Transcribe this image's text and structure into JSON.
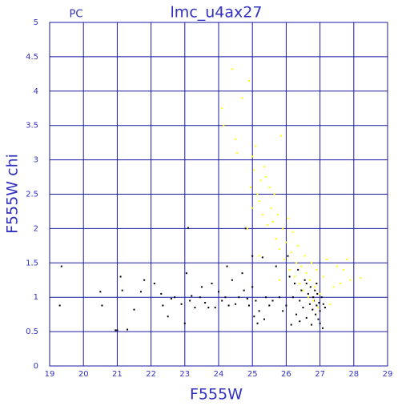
{
  "chart_data": {
    "type": "scatter",
    "title": "lmc_u4ax27",
    "subtitle": "PC",
    "x_label": "F555W",
    "y_label": "F555W chi",
    "xlim": [
      19,
      29
    ],
    "xticks": [
      19,
      20,
      21,
      22,
      23,
      24,
      25,
      26,
      27,
      28,
      29
    ],
    "ylim": [
      0,
      5
    ],
    "yticks": [
      0,
      0.5,
      1,
      1.5,
      2,
      2.5,
      3,
      3.5,
      4,
      4.5,
      5
    ],
    "grid": true,
    "series": [
      {
        "color": "#000000",
        "x": [
          19.3,
          19.35,
          20.5,
          20.55,
          20.95,
          21.0,
          21.1,
          21.15,
          21.3,
          21.5,
          21.7,
          21.8,
          22.1,
          22.3,
          22.35,
          22.5,
          22.6,
          22.7,
          22.9,
          23.0,
          23.05,
          23.1,
          23.15,
          23.2,
          23.3,
          23.45,
          23.5,
          23.6,
          23.7,
          23.8,
          23.9,
          24.0,
          24.1,
          24.2,
          24.25,
          24.3,
          24.4,
          24.5,
          24.6,
          24.7,
          24.75,
          24.8,
          24.85,
          24.9,
          25.0,
          25.0,
          25.05,
          25.1,
          25.15,
          25.2,
          25.3,
          25.35,
          25.4,
          25.5,
          25.6,
          25.7,
          25.8,
          25.9,
          26.0,
          26.05,
          26.1,
          26.15,
          26.2,
          26.25,
          26.3,
          26.35,
          26.4,
          26.45,
          26.5,
          26.55,
          26.6,
          26.65,
          26.7,
          26.72,
          26.75,
          26.78,
          26.8,
          26.82,
          26.85,
          26.87,
          26.9,
          26.92,
          26.95,
          26.97,
          27.0,
          27.05,
          27.08,
          27.1,
          27.15,
          26.6,
          26.4,
          26.9,
          27.0
        ],
        "values": [
          0.88,
          1.45,
          1.08,
          0.88,
          0.52,
          0.52,
          1.3,
          1.1,
          0.53,
          0.82,
          1.08,
          1.25,
          1.2,
          1.05,
          0.88,
          0.72,
          0.98,
          1.0,
          0.9,
          0.62,
          1.35,
          2.01,
          0.95,
          1.02,
          0.85,
          1.0,
          1.15,
          0.92,
          0.85,
          1.2,
          0.85,
          1.08,
          0.95,
          1.0,
          1.45,
          0.88,
          1.25,
          0.9,
          1.0,
          1.35,
          1.1,
          2.0,
          0.98,
          0.88,
          1.6,
          1.15,
          0.72,
          0.95,
          0.62,
          0.8,
          1.58,
          0.68,
          1.0,
          0.88,
          0.95,
          1.45,
          1.0,
          0.8,
          0.88,
          1.6,
          1.3,
          0.6,
          1.0,
          1.2,
          0.75,
          1.4,
          0.95,
          1.1,
          0.85,
          1.25,
          0.7,
          1.05,
          0.9,
          1.15,
          0.6,
          0.82,
          1.0,
          0.95,
          1.1,
          0.75,
          0.88,
          1.05,
          0.68,
          0.92,
          0.8,
          1.0,
          0.55,
          0.9,
          0.85,
          1.2,
          0.65,
          1.2,
          0.62
        ]
      },
      {
        "color": "#ffff00",
        "x": [
          24.1,
          24.15,
          24.4,
          24.5,
          24.55,
          24.7,
          24.9,
          24.95,
          25.0,
          25.05,
          25.1,
          25.15,
          25.2,
          25.25,
          25.3,
          25.35,
          25.4,
          25.45,
          25.5,
          25.55,
          25.6,
          25.65,
          25.7,
          25.75,
          25.8,
          25.85,
          25.9,
          25.95,
          26.0,
          26.05,
          26.1,
          26.15,
          26.2,
          26.25,
          26.3,
          26.35,
          26.4,
          26.45,
          26.5,
          26.55,
          26.6,
          26.65,
          26.7,
          26.75,
          26.8,
          26.85,
          26.9,
          26.95,
          27.0,
          27.1,
          27.2,
          27.3,
          27.4,
          27.5,
          27.6,
          27.7,
          27.8,
          27.9,
          28.2,
          25.0,
          25.8,
          25.2,
          24.85
        ],
        "values": [
          3.75,
          3.5,
          4.32,
          3.3,
          3.1,
          3.9,
          4.15,
          2.6,
          3.05,
          2.85,
          3.2,
          2.5,
          2.4,
          2.7,
          2.2,
          2.9,
          2.75,
          2.05,
          2.6,
          2.3,
          2.1,
          2.5,
          1.85,
          2.2,
          1.7,
          3.35,
          2.0,
          1.55,
          1.8,
          2.15,
          1.4,
          1.65,
          1.95,
          1.3,
          1.5,
          1.75,
          1.2,
          1.45,
          1.1,
          1.6,
          1.35,
          1.0,
          1.25,
          1.5,
          0.95,
          1.15,
          1.4,
          0.85,
          1.05,
          1.3,
          1.55,
          0.9,
          1.15,
          1.45,
          1.2,
          1.4,
          1.55,
          1.25,
          1.28,
          2.3,
          1.25,
          1.6,
          2.0
        ]
      }
    ]
  }
}
